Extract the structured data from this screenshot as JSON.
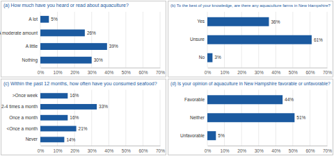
{
  "chart_data": [
    {
      "type": "bar",
      "title": "(a) How much have you heard or read about aquaculture?",
      "categories": [
        "A lot",
        "A moderate amount",
        "A little",
        "Nothing"
      ],
      "values": [
        5,
        26,
        39,
        30
      ],
      "value_labels": [
        "5%",
        "26%",
        "39%",
        "30%"
      ],
      "color": "#1b5aa0",
      "orientation": "horizontal",
      "data_labels": true,
      "grid": true,
      "xlim": [
        0,
        70
      ],
      "xticks": [
        {
          "value": 0,
          "label": "0%"
        },
        {
          "value": 10,
          "label": "10%"
        },
        {
          "value": 20,
          "label": "20%"
        },
        {
          "value": 30,
          "label": "30%"
        },
        {
          "value": 40,
          "label": "40%"
        },
        {
          "value": 50,
          "label": "50%"
        },
        {
          "value": 60,
          "label": "60%"
        },
        {
          "value": 70,
          "label": "70%"
        }
      ]
    },
    {
      "type": "bar",
      "title": "(b) To the best of your knowledge, are there any aquaculture farms in New Hampshire?",
      "categories": [
        "Yes",
        "Unsure",
        "No"
      ],
      "values": [
        36,
        61,
        3
      ],
      "value_labels": [
        "36%",
        "61%",
        "3%"
      ],
      "color": "#1b5aa0",
      "orientation": "horizontal",
      "data_labels": true,
      "grid": true,
      "xlim": [
        0,
        70
      ],
      "xticks": [
        {
          "value": 0,
          "label": "0%"
        },
        {
          "value": 10,
          "label": "10%"
        },
        {
          "value": 20,
          "label": "20%"
        },
        {
          "value": 30,
          "label": "30%"
        },
        {
          "value": 40,
          "label": "40%"
        },
        {
          "value": 50,
          "label": "50%"
        },
        {
          "value": 60,
          "label": "60%"
        },
        {
          "value": 70,
          "label": "70%"
        }
      ]
    },
    {
      "type": "bar",
      "title": "(c) Within the past 12 months, how often have you consumed seafood?",
      "categories": [
        ">Once week",
        "2-4 times a month",
        "Once a month",
        "<Once a month",
        "Never"
      ],
      "values": [
        16,
        33,
        16,
        21,
        14
      ],
      "value_labels": [
        "16%",
        "33%",
        "16%",
        "21%",
        "14%"
      ],
      "color": "#1b5aa0",
      "orientation": "horizontal",
      "data_labels": true,
      "grid": true,
      "xlim": [
        0,
        70
      ],
      "xticks": [
        {
          "value": 0,
          "label": "0%"
        },
        {
          "value": 10,
          "label": "10%"
        },
        {
          "value": 20,
          "label": "20%"
        },
        {
          "value": 30,
          "label": "30%"
        },
        {
          "value": 40,
          "label": "40%"
        },
        {
          "value": 50,
          "label": "50%"
        },
        {
          "value": 60,
          "label": "60%"
        },
        {
          "value": 70,
          "label": "70%"
        }
      ]
    },
    {
      "type": "bar",
      "title": "(d) Is your opinion of aquaculture in New Hampshire favorable or unfavorable?",
      "categories": [
        "Favorable",
        "Neither",
        "Unfavorable"
      ],
      "values": [
        44,
        51,
        5
      ],
      "value_labels": [
        "44%",
        "51%",
        "5%"
      ],
      "color": "#1b5aa0",
      "orientation": "horizontal",
      "data_labels": true,
      "grid": true,
      "xlim": [
        0,
        70
      ],
      "xticks": [
        {
          "value": 0,
          "label": "0%"
        },
        {
          "value": 10,
          "label": "10%"
        },
        {
          "value": 20,
          "label": "20%"
        },
        {
          "value": 30,
          "label": "30%"
        },
        {
          "value": 40,
          "label": "40%"
        },
        {
          "value": 50,
          "label": "50%"
        },
        {
          "value": 60,
          "label": "60%"
        },
        {
          "value": 70,
          "label": "70%"
        }
      ]
    }
  ]
}
